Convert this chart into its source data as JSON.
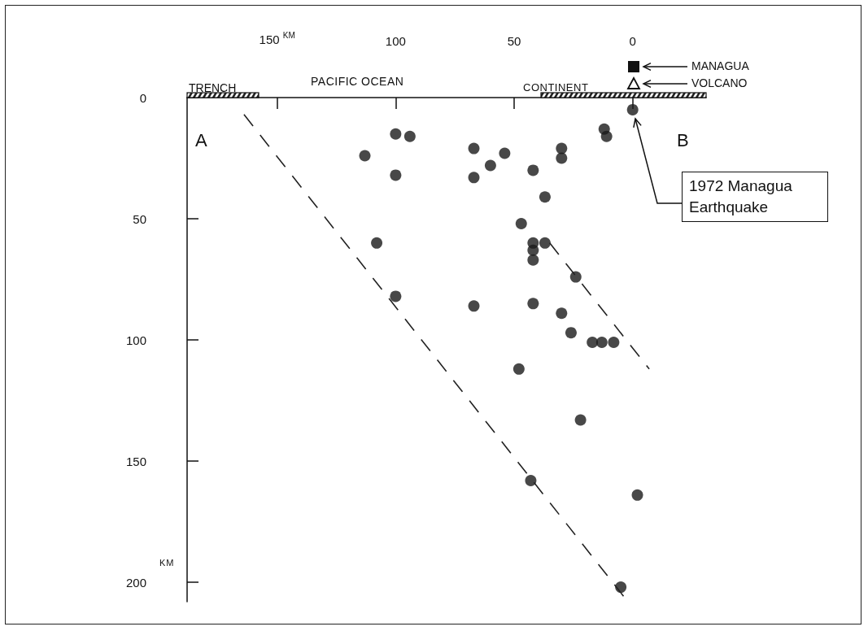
{
  "chart_data": {
    "type": "scatter",
    "xlim": [
      188,
      -31
    ],
    "xticks": [
      {
        "value": 150,
        "label": "150 $^{KM}$"
      },
      100,
      50,
      0
    ],
    "ylim": [
      208,
      0
    ],
    "yticks": [
      0,
      50,
      100,
      150,
      200
    ],
    "ylabel": "KM",
    "grid": false,
    "annotations": [
      "PACIFIC OCEAN",
      "A",
      "B",
      "MANAGUA",
      "VOLCANO",
      "TRENCH",
      "CONTINENT",
      "1972 Managua Earthquake"
    ],
    "series": [
      {
        "marker": "circle",
        "color": "#1a1a1a",
        "x": [
          100,
          94,
          113,
          100,
          67,
          67,
          60,
          54,
          42,
          108,
          100,
          47,
          42,
          37,
          42,
          42,
          24,
          67,
          42,
          30,
          26,
          17,
          13,
          8,
          48,
          0,
          12,
          11,
          30,
          30,
          37,
          22,
          43,
          -2,
          5
        ],
        "values": [
          15,
          16,
          24,
          32,
          21,
          33,
          28,
          23,
          30,
          60,
          82,
          52,
          60,
          60,
          63,
          67,
          74,
          86,
          85,
          89,
          97,
          101,
          101,
          101,
          112,
          5,
          13,
          16,
          21,
          25,
          41,
          133,
          158,
          164,
          202
        ]
      },
      {
        "type": "line",
        "marker": "none",
        "line_style": "dashed",
        "color": "#222222",
        "x": [
          164,
          2
        ],
        "values": [
          7,
          208
        ]
      },
      {
        "type": "line",
        "marker": "none",
        "line_style": "dashed",
        "color": "#222222",
        "x": [
          35,
          -7
        ],
        "values": [
          60,
          112
        ]
      }
    ]
  }
}
